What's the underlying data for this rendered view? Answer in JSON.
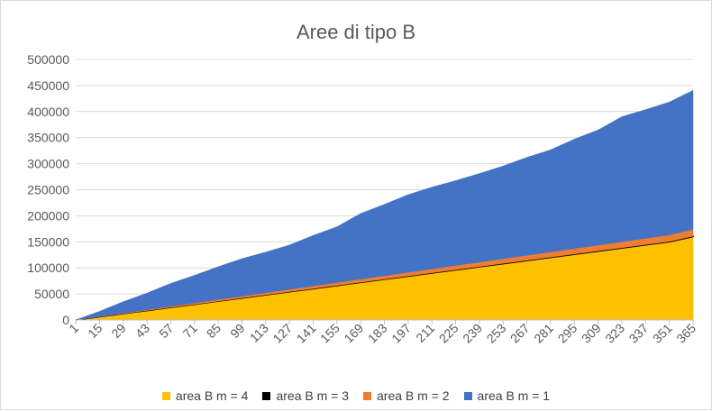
{
  "chart_data": {
    "type": "area",
    "stacked": true,
    "title": "Aree di tipo B",
    "xlabel": "",
    "ylabel": "",
    "x_range": [
      1,
      365
    ],
    "x_ticks": [
      1,
      15,
      29,
      43,
      57,
      71,
      85,
      99,
      113,
      127,
      141,
      155,
      169,
      183,
      197,
      211,
      225,
      239,
      253,
      267,
      281,
      295,
      309,
      323,
      337,
      351,
      365
    ],
    "y_ticks": [
      0,
      50000,
      100000,
      150000,
      200000,
      250000,
      300000,
      350000,
      400000,
      450000,
      500000
    ],
    "ylim": [
      0,
      500000
    ],
    "grid": true,
    "legend_position": "bottom",
    "series": [
      {
        "name": "area B m = 4",
        "color": "#ffc000",
        "x": [
          1,
          15,
          29,
          43,
          57,
          71,
          85,
          99,
          113,
          127,
          141,
          155,
          169,
          183,
          197,
          211,
          225,
          239,
          253,
          267,
          281,
          295,
          309,
          323,
          337,
          351,
          365
        ],
        "values": [
          0,
          6000,
          12000,
          18000,
          24000,
          30000,
          36000,
          42000,
          48000,
          54000,
          60000,
          66000,
          72000,
          78000,
          84000,
          90000,
          96000,
          102000,
          108000,
          114000,
          120000,
          126000,
          132000,
          138000,
          144000,
          150000,
          160000
        ]
      },
      {
        "name": "area B m = 3",
        "color": "#000000",
        "x": [
          1,
          15,
          29,
          43,
          57,
          71,
          85,
          99,
          113,
          127,
          141,
          155,
          169,
          183,
          197,
          211,
          225,
          239,
          253,
          267,
          281,
          295,
          309,
          323,
          337,
          351,
          365
        ],
        "values": [
          0,
          30,
          60,
          90,
          120,
          150,
          180,
          210,
          240,
          270,
          300,
          330,
          360,
          390,
          420,
          450,
          480,
          510,
          540,
          570,
          600,
          630,
          660,
          690,
          720,
          750,
          800
        ]
      },
      {
        "name": "area B m = 2",
        "color": "#ed7d31",
        "x": [
          1,
          15,
          29,
          43,
          57,
          71,
          85,
          99,
          113,
          127,
          141,
          155,
          169,
          183,
          197,
          211,
          225,
          239,
          253,
          267,
          281,
          295,
          309,
          323,
          337,
          351,
          365
        ],
        "values": [
          0,
          500,
          1000,
          1500,
          2000,
          2500,
          3000,
          3500,
          4000,
          4500,
          5000,
          5500,
          6000,
          6500,
          7000,
          7500,
          8000,
          8500,
          9000,
          9500,
          10000,
          10500,
          11000,
          11500,
          12000,
          12500,
          13000
        ]
      },
      {
        "name": "area B m = 1",
        "color": "#4472c4",
        "x": [
          1,
          15,
          29,
          43,
          57,
          71,
          85,
          99,
          113,
          127,
          141,
          155,
          169,
          183,
          197,
          211,
          225,
          239,
          253,
          267,
          281,
          295,
          309,
          323,
          337,
          351,
          365
        ],
        "values": [
          0,
          10000,
          22000,
          32000,
          44000,
          53000,
          63000,
          72000,
          78000,
          85000,
          97000,
          107000,
          126000,
          137000,
          149000,
          157000,
          163000,
          170000,
          178000,
          188000,
          196000,
          210000,
          221000,
          240000,
          247000,
          255000,
          267000
        ]
      }
    ]
  }
}
